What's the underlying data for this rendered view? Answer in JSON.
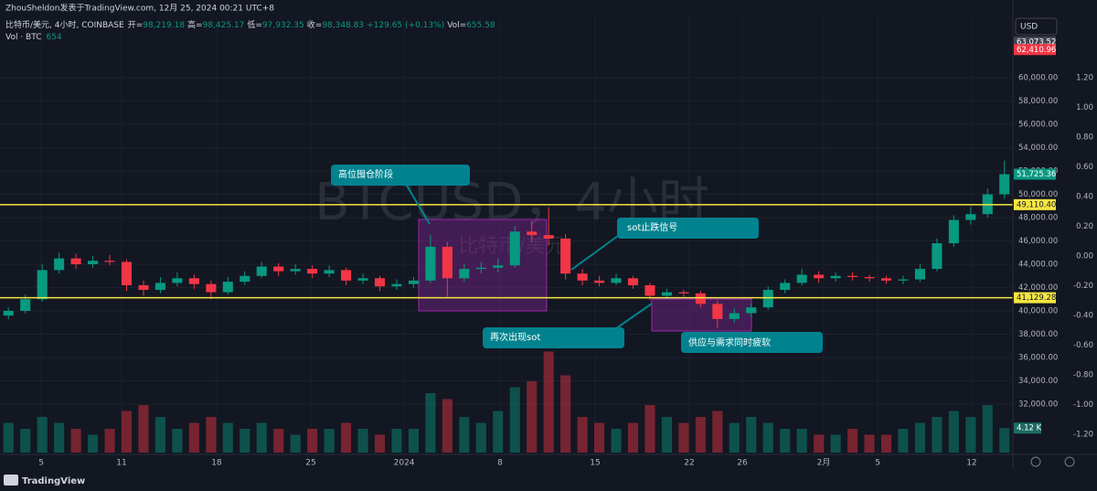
{
  "header": {
    "byline": "ZhouSheldon发表于TradingView.com, 12月 25, 2024 00:21 UTC+8",
    "symbol": "比特币/美元, 4小时, COINBASE",
    "ohlc": [
      [
        "开=",
        "98,219.18"
      ],
      [
        "高=",
        "98,425.17"
      ],
      [
        "低=",
        "97,932.35"
      ],
      [
        "收=",
        "98,348.83"
      ]
    ],
    "change": "+129.65 (+0.13%)",
    "vol_label": "Vol=",
    "vol": "655.58",
    "vol_name": "Vol · BTC",
    "vol_len": "654",
    "currency": "USD",
    "footer": "TradingView"
  },
  "watermark": {
    "main": "BTCUSD，4小时",
    "sub": "比特币/美元"
  },
  "annotations": [
    "高位囤仓阶段",
    "sot止跌信号",
    "再次出现sot",
    "供应与需求同时疲软"
  ],
  "chart_data": {
    "type": "candlestick",
    "up_color": "#089981",
    "down_color": "#f23645",
    "grid": true,
    "xlim": [
      -0.5,
      59.5
    ],
    "xticks": [
      {
        "value": 1.94,
        "label": "5"
      },
      {
        "value": 6.7,
        "label": "11"
      },
      {
        "value": 12.33,
        "label": "18"
      },
      {
        "value": 17.91,
        "label": "25"
      },
      {
        "value": 23.44,
        "label": "2024"
      },
      {
        "value": 29.12,
        "label": "8"
      },
      {
        "value": 34.75,
        "label": "15"
      },
      {
        "value": 40.33,
        "label": "22"
      },
      {
        "value": 43.47,
        "label": "26"
      },
      {
        "value": 48.29,
        "label": "2月"
      },
      {
        "value": 51.49,
        "label": "5"
      },
      {
        "value": 57.06,
        "label": "12"
      }
    ],
    "ylim": [
      27843,
      65255
    ],
    "yticks": [
      {
        "value": 32000,
        "label": "32,000.00"
      },
      {
        "value": 34000,
        "label": "34,000.00"
      },
      {
        "value": 36000,
        "label": "36,000.00"
      },
      {
        "value": 38000,
        "label": "38,000.00"
      },
      {
        "value": 40000,
        "label": "40,000.00"
      },
      {
        "value": 42000,
        "label": "42,000.00"
      },
      {
        "value": 44000,
        "label": "44,000.00"
      },
      {
        "value": 46000,
        "label": "46,000.00"
      },
      {
        "value": 48000,
        "label": "48,000.00"
      },
      {
        "value": 50000,
        "label": "50,000.00"
      },
      {
        "value": 52000,
        "label": "52,000.00"
      },
      {
        "value": 54000,
        "label": "54,000.00"
      },
      {
        "value": 56000,
        "label": "56,000.00"
      },
      {
        "value": 58000,
        "label": "58,000.00"
      },
      {
        "value": 60000,
        "label": "60,000.00"
      }
    ],
    "y2lim": [
      -1.323,
      1.612
    ],
    "y2ticks": [
      {
        "value": 1.2,
        "label": "1.20"
      },
      {
        "value": 1,
        "label": "1.00"
      },
      {
        "value": 0.8,
        "label": "0.80"
      },
      {
        "value": 0.6,
        "label": "0.60"
      },
      {
        "value": 0.4,
        "label": "0.40"
      },
      {
        "value": 0.2,
        "label": "0.20"
      },
      {
        "value": 0,
        "label": "0.00"
      },
      {
        "value": -0.2,
        "label": "-0.20"
      },
      {
        "value": -0.4,
        "label": "-0.40"
      },
      {
        "value": -0.6,
        "label": "-0.60"
      },
      {
        "value": -0.8,
        "label": "-0.80"
      },
      {
        "value": -1,
        "label": "-1.00"
      },
      {
        "value": -1.2,
        "label": "-1.20"
      }
    ],
    "ohlc": [
      [
        39600,
        40300,
        39300,
        40000
      ],
      [
        40000,
        41400,
        39800,
        41000
      ],
      [
        41000,
        44000,
        40800,
        43500
      ],
      [
        43500,
        45000,
        43200,
        44500
      ],
      [
        44500,
        44900,
        43600,
        44000
      ],
      [
        44000,
        44700,
        43700,
        44300
      ],
      [
        44300,
        44800,
        43900,
        44200
      ],
      [
        44200,
        44400,
        41700,
        42200
      ],
      [
        42200,
        42600,
        41300,
        41800
      ],
      [
        41800,
        42900,
        41500,
        42400
      ],
      [
        42400,
        43300,
        42100,
        42800
      ],
      [
        42800,
        43100,
        41900,
        42300
      ],
      [
        42300,
        42600,
        41000,
        41600
      ],
      [
        41600,
        42900,
        41400,
        42500
      ],
      [
        42500,
        43400,
        42200,
        43000
      ],
      [
        43000,
        44200,
        42800,
        43800
      ],
      [
        43800,
        44100,
        43000,
        43400
      ],
      [
        43400,
        44000,
        43100,
        43600
      ],
      [
        43600,
        43900,
        42800,
        43200
      ],
      [
        43200,
        43900,
        42900,
        43500
      ],
      [
        43500,
        43700,
        42200,
        42600
      ],
      [
        42600,
        43200,
        42300,
        42800
      ],
      [
        42800,
        43000,
        41700,
        42100
      ],
      [
        42100,
        42700,
        41800,
        42300
      ],
      [
        42300,
        42900,
        42000,
        42600
      ],
      [
        42600,
        46500,
        42400,
        45500
      ],
      [
        45500,
        45900,
        41200,
        42800
      ],
      [
        42800,
        44000,
        42500,
        43600
      ],
      [
        43600,
        44200,
        43200,
        43700
      ],
      [
        43700,
        44500,
        43300,
        43900
      ],
      [
        43900,
        47300,
        43700,
        46800
      ],
      [
        46800,
        47700,
        45900,
        46500
      ],
      [
        46500,
        48900,
        45600,
        46200
      ],
      [
        46200,
        46600,
        42700,
        43200
      ],
      [
        43200,
        43600,
        42200,
        42600
      ],
      [
        42600,
        43000,
        42100,
        42400
      ],
      [
        42400,
        43200,
        42200,
        42800
      ],
      [
        42800,
        43000,
        41900,
        42200
      ],
      [
        42200,
        42400,
        40900,
        41300
      ],
      [
        41300,
        41900,
        41000,
        41600
      ],
      [
        41600,
        41800,
        41200,
        41500
      ],
      [
        41500,
        41700,
        40300,
        40600
      ],
      [
        40600,
        40900,
        38500,
        39300
      ],
      [
        39300,
        40200,
        39000,
        39800
      ],
      [
        39800,
        40600,
        39500,
        40300
      ],
      [
        40300,
        42100,
        40100,
        41800
      ],
      [
        41800,
        42700,
        41500,
        42400
      ],
      [
        42400,
        43600,
        42200,
        43100
      ],
      [
        43100,
        43400,
        42400,
        42800
      ],
      [
        42800,
        43300,
        42500,
        43000
      ],
      [
        43000,
        43300,
        42600,
        42900
      ],
      [
        42900,
        43100,
        42500,
        42800
      ],
      [
        42800,
        43000,
        42300,
        42600
      ],
      [
        42600,
        43000,
        42300,
        42700
      ],
      [
        42700,
        44000,
        42500,
        43600
      ],
      [
        43600,
        46200,
        43400,
        45800
      ],
      [
        45800,
        48200,
        45500,
        47800
      ],
      [
        47800,
        48900,
        47400,
        48300
      ],
      [
        48300,
        50500,
        48000,
        50000
      ],
      [
        50000,
        52900,
        49600,
        51725.36
      ]
    ],
    "volume": {
      "vlim": [
        0,
        20
      ],
      "values": [
        5,
        4,
        6,
        5,
        4,
        3,
        4,
        7,
        8,
        6,
        4,
        5,
        6,
        5,
        4,
        5,
        4,
        3,
        4,
        4,
        5,
        4,
        3,
        4,
        4,
        10,
        9,
        6,
        5,
        7,
        11,
        12,
        17,
        13,
        6,
        5,
        4,
        5,
        8,
        6,
        5,
        6,
        7,
        5,
        6,
        5,
        4,
        4,
        3,
        3,
        4,
        3,
        3,
        4,
        5,
        6,
        7,
        6,
        8,
        4.12
      ],
      "last": {
        "value": 4.12,
        "label": "4.12 K"
      }
    },
    "levels": {
      "color": "#f5e642",
      "lines": [
        {
          "value": 49110.4,
          "label": "49,110.40"
        },
        {
          "value": 41129.28,
          "label": "41,129.28"
        }
      ]
    },
    "markers": [
      {
        "value": 63073.52,
        "label": "63,073.52",
        "color": "#434651"
      },
      {
        "value": 62410.96,
        "label": "62,410.96",
        "color": "#f23645"
      },
      {
        "value": 51725.36,
        "label": "51,725.36",
        "color": "#089981"
      }
    ]
  }
}
